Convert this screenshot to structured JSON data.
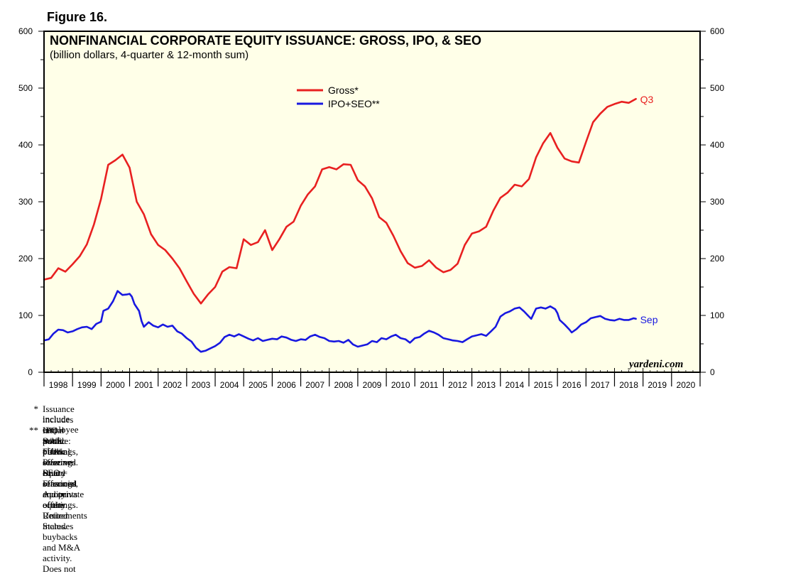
{
  "figure_label": "Figure 16.",
  "colors": {
    "plot_background": "#FFFFE8",
    "gross": "#E82020",
    "ipo_seo": "#1818E0"
  },
  "watermark": "yardeni.com",
  "footnotes": [
    {
      "mark": "*",
      "lines": [
        "Issuance includes initial public offerings, seasoned equity offerings, and private equity. Retirements includes buybacks and M&A activity. Does not",
        "include employee stock plans."
      ]
    },
    {
      "mark": "**",
      "lines": [
        "IPO = initial public offerings. SEO = seasoned equity offerings."
      ]
    },
    {
      "mark": "",
      "lines": [
        "Source: Federal Reserve Board Financial Accounts of the United States."
      ]
    }
  ],
  "chart_data": {
    "type": "line",
    "title": "NONFINANCIAL CORPORATE EQUITY ISSUANCE: GROSS, IPO, & SEO",
    "subtitle": "(billion dollars, 4-quarter & 12-month sum)",
    "xlabel": "",
    "ylabel": "",
    "xlim": [
      1998,
      2021
    ],
    "ylim": [
      0,
      600
    ],
    "yticks": [
      0,
      100,
      200,
      300,
      400,
      500,
      600
    ],
    "year_labels": [
      "1998",
      "1999",
      "2000",
      "2001",
      "2002",
      "2003",
      "2004",
      "2005",
      "2006",
      "2007",
      "2008",
      "2009",
      "2010",
      "2011",
      "2012",
      "2013",
      "2014",
      "2015",
      "2016",
      "2017",
      "2018",
      "2019",
      "2020"
    ],
    "legend_position": "top-center",
    "series": [
      {
        "name": "Gross*",
        "end_label": "Q3",
        "points": [
          [
            1998.0,
            163
          ],
          [
            1998.25,
            166
          ],
          [
            1998.5,
            183
          ],
          [
            1998.75,
            177
          ],
          [
            1999.0,
            190
          ],
          [
            1999.25,
            204
          ],
          [
            1999.5,
            225
          ],
          [
            1999.75,
            260
          ],
          [
            2000.0,
            305
          ],
          [
            2000.25,
            365
          ],
          [
            2000.5,
            373
          ],
          [
            2000.75,
            383
          ],
          [
            2001.0,
            360
          ],
          [
            2001.25,
            300
          ],
          [
            2001.5,
            278
          ],
          [
            2001.75,
            243
          ],
          [
            2002.0,
            224
          ],
          [
            2002.25,
            215
          ],
          [
            2002.5,
            200
          ],
          [
            2002.75,
            183
          ],
          [
            2003.0,
            160
          ],
          [
            2003.25,
            138
          ],
          [
            2003.5,
            121
          ],
          [
            2003.75,
            137
          ],
          [
            2004.0,
            150
          ],
          [
            2004.25,
            177
          ],
          [
            2004.5,
            185
          ],
          [
            2004.75,
            183
          ],
          [
            2005.0,
            234
          ],
          [
            2005.25,
            224
          ],
          [
            2005.5,
            229
          ],
          [
            2005.75,
            250
          ],
          [
            2006.0,
            215
          ],
          [
            2006.25,
            234
          ],
          [
            2006.5,
            256
          ],
          [
            2006.75,
            265
          ],
          [
            2007.0,
            293
          ],
          [
            2007.25,
            313
          ],
          [
            2007.5,
            327
          ],
          [
            2007.75,
            357
          ],
          [
            2008.0,
            361
          ],
          [
            2008.25,
            357
          ],
          [
            2008.5,
            366
          ],
          [
            2008.75,
            365
          ],
          [
            2009.0,
            338
          ],
          [
            2009.25,
            327
          ],
          [
            2009.5,
            306
          ],
          [
            2009.75,
            273
          ],
          [
            2010.0,
            263
          ],
          [
            2010.25,
            240
          ],
          [
            2010.5,
            213
          ],
          [
            2010.75,
            192
          ],
          [
            2011.0,
            184
          ],
          [
            2011.25,
            187
          ],
          [
            2011.5,
            197
          ],
          [
            2011.75,
            184
          ],
          [
            2012.0,
            176
          ],
          [
            2012.25,
            180
          ],
          [
            2012.5,
            191
          ],
          [
            2012.75,
            224
          ],
          [
            2013.0,
            244
          ],
          [
            2013.25,
            248
          ],
          [
            2013.5,
            256
          ],
          [
            2013.75,
            284
          ],
          [
            2014.0,
            307
          ],
          [
            2014.25,
            316
          ],
          [
            2014.5,
            330
          ],
          [
            2014.75,
            327
          ],
          [
            2015.0,
            340
          ],
          [
            2015.25,
            378
          ],
          [
            2015.5,
            403
          ],
          [
            2015.75,
            421
          ],
          [
            2016.0,
            395
          ],
          [
            2016.25,
            376
          ],
          [
            2016.5,
            371
          ],
          [
            2016.75,
            369
          ],
          [
            2017.0,
            405
          ],
          [
            2017.25,
            440
          ],
          [
            2017.5,
            455
          ],
          [
            2017.75,
            467
          ],
          [
            2018.0,
            472
          ],
          [
            2018.25,
            476
          ],
          [
            2018.5,
            474
          ],
          [
            2018.75,
            481
          ]
        ]
      },
      {
        "name": "IPO+SEO**",
        "end_label": "Sep",
        "points": [
          [
            1998.0,
            56
          ],
          [
            1998.17,
            58
          ],
          [
            1998.33,
            68
          ],
          [
            1998.5,
            75
          ],
          [
            1998.67,
            74
          ],
          [
            1998.83,
            70
          ],
          [
            1999.0,
            72
          ],
          [
            1999.17,
            76
          ],
          [
            1999.33,
            79
          ],
          [
            1999.5,
            80
          ],
          [
            1999.67,
            76
          ],
          [
            1999.83,
            85
          ],
          [
            2000.0,
            89
          ],
          [
            2000.08,
            108
          ],
          [
            2000.25,
            112
          ],
          [
            2000.42,
            125
          ],
          [
            2000.58,
            143
          ],
          [
            2000.75,
            136
          ],
          [
            2000.92,
            137
          ],
          [
            2001.0,
            138
          ],
          [
            2001.08,
            133
          ],
          [
            2001.17,
            120
          ],
          [
            2001.33,
            108
          ],
          [
            2001.42,
            90
          ],
          [
            2001.5,
            80
          ],
          [
            2001.67,
            88
          ],
          [
            2001.83,
            82
          ],
          [
            2002.0,
            79
          ],
          [
            2002.17,
            84
          ],
          [
            2002.33,
            80
          ],
          [
            2002.5,
            82
          ],
          [
            2002.67,
            72
          ],
          [
            2002.83,
            68
          ],
          [
            2003.0,
            60
          ],
          [
            2003.17,
            54
          ],
          [
            2003.33,
            43
          ],
          [
            2003.5,
            36
          ],
          [
            2003.67,
            38
          ],
          [
            2003.83,
            42
          ],
          [
            2004.0,
            46
          ],
          [
            2004.17,
            52
          ],
          [
            2004.33,
            62
          ],
          [
            2004.5,
            66
          ],
          [
            2004.67,
            63
          ],
          [
            2004.83,
            67
          ],
          [
            2005.0,
            63
          ],
          [
            2005.17,
            59
          ],
          [
            2005.33,
            56
          ],
          [
            2005.5,
            60
          ],
          [
            2005.67,
            55
          ],
          [
            2005.83,
            57
          ],
          [
            2006.0,
            59
          ],
          [
            2006.17,
            58
          ],
          [
            2006.33,
            63
          ],
          [
            2006.5,
            61
          ],
          [
            2006.67,
            57
          ],
          [
            2006.83,
            55
          ],
          [
            2007.0,
            58
          ],
          [
            2007.17,
            57
          ],
          [
            2007.33,
            63
          ],
          [
            2007.5,
            66
          ],
          [
            2007.67,
            62
          ],
          [
            2007.83,
            60
          ],
          [
            2008.0,
            55
          ],
          [
            2008.17,
            54
          ],
          [
            2008.33,
            55
          ],
          [
            2008.5,
            52
          ],
          [
            2008.67,
            57
          ],
          [
            2008.83,
            49
          ],
          [
            2009.0,
            45
          ],
          [
            2009.17,
            47
          ],
          [
            2009.33,
            49
          ],
          [
            2009.5,
            55
          ],
          [
            2009.67,
            53
          ],
          [
            2009.83,
            60
          ],
          [
            2010.0,
            58
          ],
          [
            2010.17,
            63
          ],
          [
            2010.33,
            66
          ],
          [
            2010.5,
            60
          ],
          [
            2010.67,
            58
          ],
          [
            2010.83,
            52
          ],
          [
            2011.0,
            60
          ],
          [
            2011.17,
            62
          ],
          [
            2011.33,
            68
          ],
          [
            2011.5,
            73
          ],
          [
            2011.67,
            70
          ],
          [
            2011.83,
            66
          ],
          [
            2012.0,
            60
          ],
          [
            2012.17,
            58
          ],
          [
            2012.33,
            56
          ],
          [
            2012.5,
            55
          ],
          [
            2012.67,
            53
          ],
          [
            2012.83,
            58
          ],
          [
            2013.0,
            63
          ],
          [
            2013.17,
            65
          ],
          [
            2013.33,
            67
          ],
          [
            2013.5,
            64
          ],
          [
            2013.67,
            72
          ],
          [
            2013.83,
            80
          ],
          [
            2014.0,
            98
          ],
          [
            2014.17,
            104
          ],
          [
            2014.33,
            107
          ],
          [
            2014.5,
            112
          ],
          [
            2014.67,
            114
          ],
          [
            2014.83,
            107
          ],
          [
            2015.0,
            98
          ],
          [
            2015.08,
            94
          ],
          [
            2015.25,
            112
          ],
          [
            2015.42,
            114
          ],
          [
            2015.58,
            112
          ],
          [
            2015.75,
            116
          ],
          [
            2015.92,
            111
          ],
          [
            2016.0,
            104
          ],
          [
            2016.08,
            92
          ],
          [
            2016.25,
            84
          ],
          [
            2016.42,
            75
          ],
          [
            2016.5,
            70
          ],
          [
            2016.67,
            76
          ],
          [
            2016.83,
            84
          ],
          [
            2017.0,
            88
          ],
          [
            2017.17,
            95
          ],
          [
            2017.33,
            97
          ],
          [
            2017.5,
            99
          ],
          [
            2017.67,
            94
          ],
          [
            2017.83,
            92
          ],
          [
            2018.0,
            91
          ],
          [
            2018.17,
            94
          ],
          [
            2018.33,
            92
          ],
          [
            2018.5,
            92
          ],
          [
            2018.67,
            95
          ],
          [
            2018.75,
            94
          ]
        ]
      }
    ]
  }
}
